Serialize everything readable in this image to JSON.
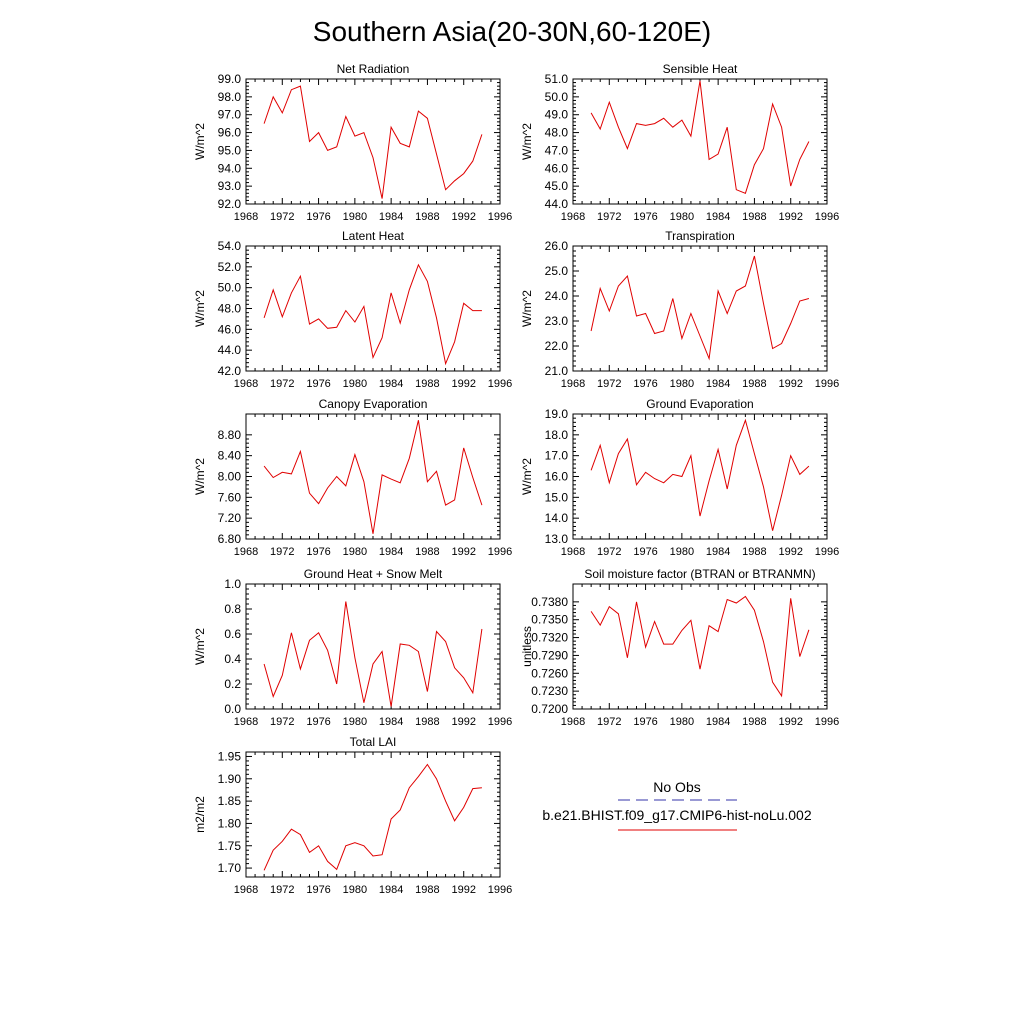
{
  "title": "Southern Asia(20-30N,60-120E)",
  "colors": {
    "model_line": "#e00000",
    "obs_line": "#3333aa",
    "axis": "#000000"
  },
  "x_axis": {
    "ticks": [
      1968,
      1972,
      1976,
      1980,
      1984,
      1988,
      1992,
      1996
    ],
    "range": [
      1968,
      1996
    ]
  },
  "years": [
    1970,
    1971,
    1972,
    1973,
    1974,
    1975,
    1976,
    1977,
    1978,
    1979,
    1980,
    1981,
    1982,
    1983,
    1984,
    1985,
    1986,
    1987,
    1988,
    1989,
    1990,
    1991,
    1992,
    1993,
    1994
  ],
  "legend": {
    "obs_label": "No Obs",
    "model_label": "b.e21.BHIST.f09_g17.CMIP6-hist-noLu.002"
  },
  "chart_data": [
    {
      "type": "line",
      "title": "Net Radiation",
      "ylabel": "W/m^2",
      "ylim": [
        92.0,
        99.0
      ],
      "yticks": [
        "92.0",
        "93.0",
        "94.0",
        "95.0",
        "96.0",
        "97.0",
        "98.0",
        "99.0"
      ],
      "values": [
        96.5,
        98.0,
        97.1,
        98.4,
        98.6,
        95.5,
        96.0,
        95.0,
        95.2,
        96.9,
        95.8,
        96.0,
        94.6,
        92.3,
        96.3,
        95.4,
        95.2,
        97.2,
        96.8,
        94.8,
        92.8,
        93.3,
        93.7,
        94.4,
        95.9
      ]
    },
    {
      "type": "line",
      "title": "Sensible Heat",
      "ylabel": "W/m^2",
      "ylim": [
        44.0,
        51.0
      ],
      "yticks": [
        "44.0",
        "45.0",
        "46.0",
        "47.0",
        "48.0",
        "49.0",
        "50.0",
        "51.0"
      ],
      "values": [
        49.1,
        48.2,
        49.7,
        48.3,
        47.1,
        48.5,
        48.4,
        48.5,
        48.8,
        48.3,
        48.7,
        47.8,
        50.9,
        46.5,
        46.8,
        48.3,
        44.8,
        44.6,
        46.2,
        47.1,
        49.6,
        48.3,
        45.0,
        46.5,
        47.5
      ]
    },
    {
      "type": "line",
      "title": "Latent Heat",
      "ylabel": "W/m^2",
      "ylim": [
        42.0,
        54.0
      ],
      "yticks": [
        "42.0",
        "44.0",
        "46.0",
        "48.0",
        "50.0",
        "52.0",
        "54.0"
      ],
      "values": [
        47.1,
        49.8,
        47.2,
        49.5,
        51.1,
        46.5,
        47.0,
        46.1,
        46.2,
        47.8,
        46.7,
        48.2,
        43.3,
        45.2,
        49.5,
        46.6,
        49.8,
        52.2,
        50.6,
        47.1,
        42.7,
        44.8,
        48.5,
        47.8,
        47.8
      ]
    },
    {
      "type": "line",
      "title": "Transpiration",
      "ylabel": "W/m^2",
      "ylim": [
        21.0,
        26.0
      ],
      "yticks": [
        "21.0",
        "22.0",
        "23.0",
        "24.0",
        "25.0",
        "26.0"
      ],
      "values": [
        22.6,
        24.3,
        23.4,
        24.4,
        24.8,
        23.2,
        23.3,
        22.5,
        22.6,
        23.9,
        22.3,
        23.3,
        22.4,
        21.5,
        24.2,
        23.3,
        24.2,
        24.4,
        25.6,
        23.7,
        21.9,
        22.1,
        22.9,
        23.8,
        23.9
      ]
    },
    {
      "type": "line",
      "title": "Canopy Evaporation",
      "ylabel": "W/m^2",
      "ylim": [
        6.8,
        9.2
      ],
      "yticks": [
        "6.80",
        "7.20",
        "7.60",
        "8.00",
        "8.40",
        "8.80"
      ],
      "values": [
        8.2,
        7.98,
        8.08,
        8.05,
        8.48,
        7.68,
        7.48,
        7.78,
        8.0,
        7.82,
        8.42,
        7.9,
        6.9,
        8.03,
        7.95,
        7.88,
        8.35,
        9.08,
        7.9,
        8.1,
        7.45,
        7.55,
        8.55,
        7.98,
        7.45
      ]
    },
    {
      "type": "line",
      "title": "Ground Evaporation",
      "ylabel": "W/m^2",
      "ylim": [
        13.0,
        19.0
      ],
      "yticks": [
        "13.0",
        "14.0",
        "15.0",
        "16.0",
        "17.0",
        "18.0",
        "19.0"
      ],
      "values": [
        16.3,
        17.5,
        15.7,
        17.1,
        17.8,
        15.6,
        16.2,
        15.9,
        15.7,
        16.1,
        16.0,
        17.0,
        14.1,
        15.8,
        17.3,
        15.4,
        17.5,
        18.7,
        17.1,
        15.5,
        13.4,
        15.1,
        17.0,
        16.1,
        16.5
      ]
    },
    {
      "type": "line",
      "title": "Ground Heat + Snow Melt",
      "ylabel": "W/m^2",
      "ylim": [
        0.0,
        1.0
      ],
      "yticks": [
        "0.0",
        "0.2",
        "0.4",
        "0.6",
        "0.8",
        "1.0"
      ],
      "values": [
        0.36,
        0.1,
        0.27,
        0.61,
        0.32,
        0.55,
        0.61,
        0.47,
        0.2,
        0.86,
        0.41,
        0.05,
        0.36,
        0.46,
        0.02,
        0.52,
        0.51,
        0.46,
        0.14,
        0.62,
        0.54,
        0.33,
        0.25,
        0.13,
        0.64
      ]
    },
    {
      "type": "line",
      "title": "Soil moisture factor (BTRAN or BTRANMN)",
      "ylabel": "unitless",
      "ylim": [
        0.72,
        0.741
      ],
      "yticks": [
        "0.7200",
        "0.7230",
        "0.7260",
        "0.7290",
        "0.7320",
        "0.7350",
        "0.7380"
      ],
      "values": [
        0.7364,
        0.7341,
        0.7372,
        0.736,
        0.7286,
        0.738,
        0.7304,
        0.7347,
        0.7309,
        0.7309,
        0.7332,
        0.7349,
        0.7267,
        0.734,
        0.733,
        0.7384,
        0.7378,
        0.7389,
        0.7366,
        0.7313,
        0.7245,
        0.7222,
        0.7386,
        0.7288,
        0.7333
      ]
    },
    {
      "type": "line",
      "title": "Total LAI",
      "ylabel": "m2/m2",
      "ylim": [
        1.68,
        1.96
      ],
      "yticks": [
        "1.70",
        "1.75",
        "1.80",
        "1.85",
        "1.90",
        "1.95"
      ],
      "values": [
        1.695,
        1.74,
        1.76,
        1.787,
        1.775,
        1.735,
        1.75,
        1.715,
        1.697,
        1.75,
        1.757,
        1.75,
        1.727,
        1.73,
        1.81,
        1.83,
        1.88,
        1.905,
        1.932,
        1.9,
        1.85,
        1.806,
        1.836,
        1.878,
        1.88
      ]
    }
  ]
}
